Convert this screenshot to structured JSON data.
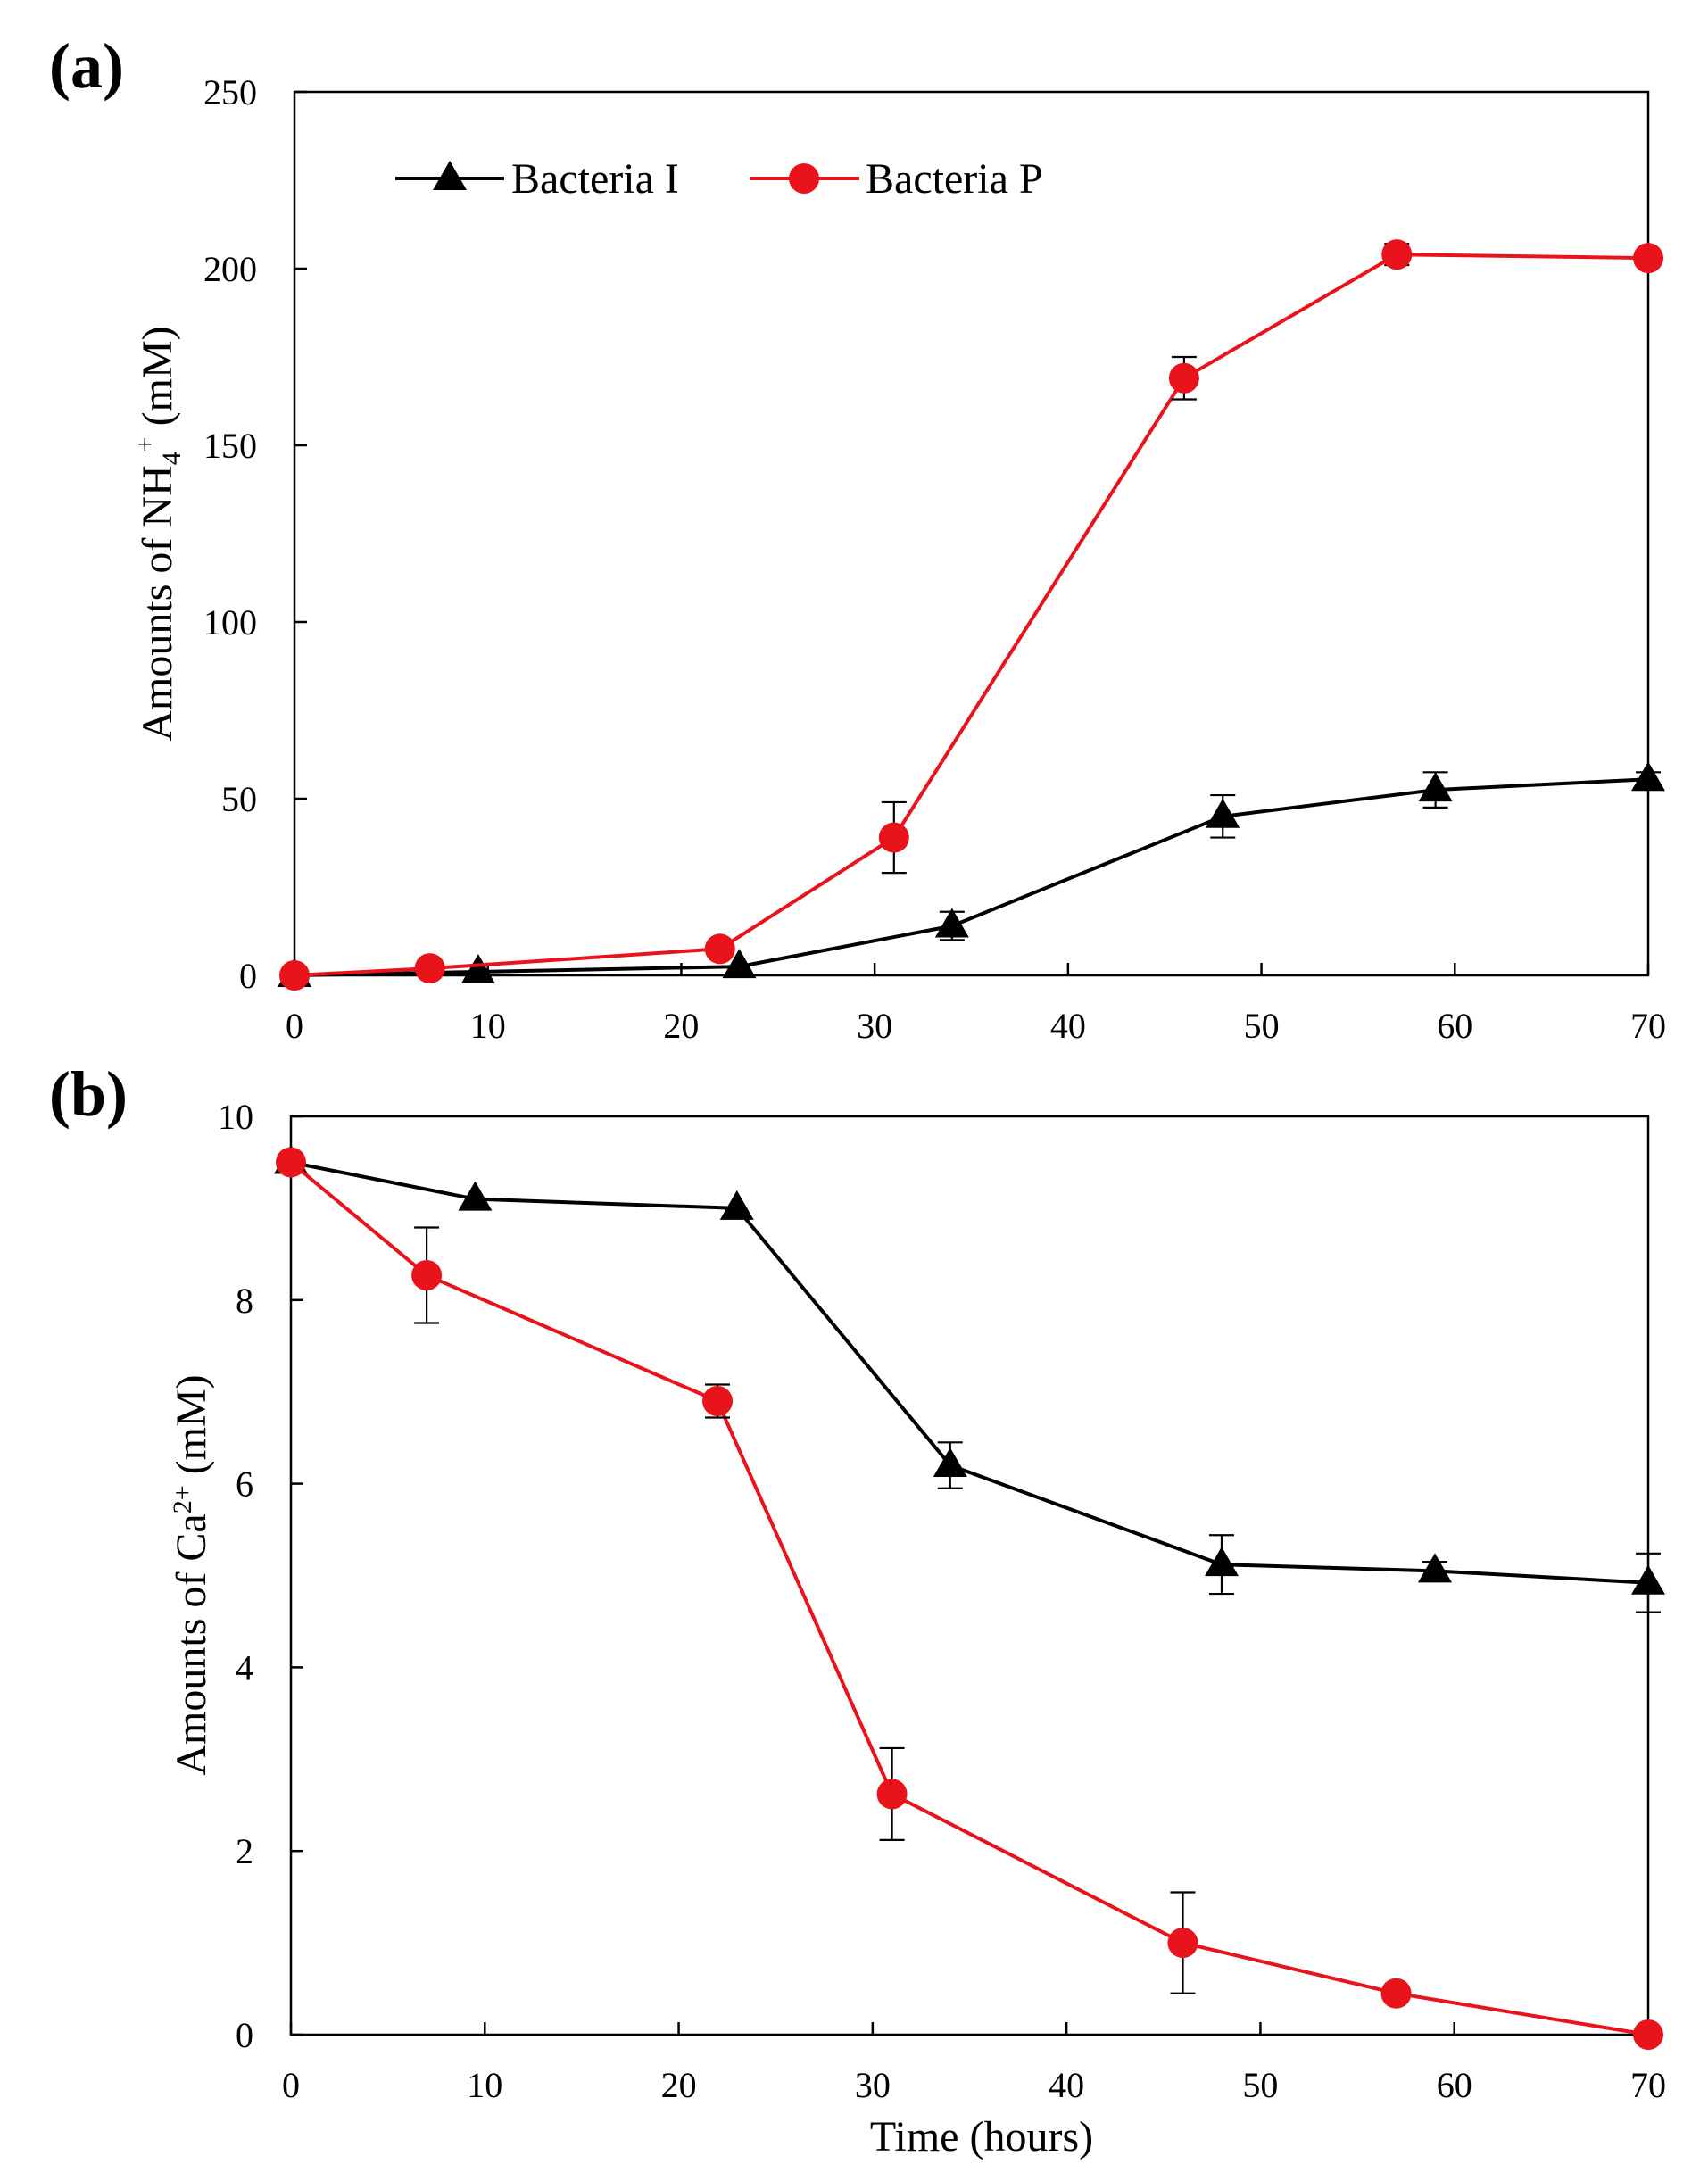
{
  "chart_data": [
    {
      "panel_label": "(a)",
      "type": "line",
      "title": "",
      "xlabel": "",
      "ylabel": {
        "prefix": "Amounts of NH",
        "sub": "4",
        "sup": "+",
        "suffix": " (mM)"
      },
      "xlim": [
        0,
        70
      ],
      "ylim": [
        0,
        250
      ],
      "xticks": [
        0,
        10,
        20,
        30,
        40,
        50,
        60,
        70
      ],
      "yticks": [
        0,
        50,
        100,
        150,
        200,
        250
      ],
      "grid": false,
      "legend_position": "top-left",
      "series": [
        {
          "name": "Bacteria I",
          "color": "#000000",
          "marker": "triangle",
          "x": [
            0,
            9.5,
            23,
            34,
            48,
            59,
            70
          ],
          "y": [
            0,
            1,
            2.5,
            14,
            45,
            52.5,
            55.5
          ],
          "err": [
            0,
            0,
            0,
            4,
            6,
            5,
            2
          ]
        },
        {
          "name": "Bacteria P",
          "color": "#e8131b",
          "marker": "circle",
          "x": [
            0,
            7,
            22,
            31,
            46,
            57,
            70
          ],
          "y": [
            0,
            2,
            7.5,
            39,
            169,
            204,
            203
          ],
          "err": [
            0,
            0,
            0,
            10,
            6,
            3,
            0
          ]
        }
      ]
    },
    {
      "panel_label": "(b)",
      "type": "line",
      "title": "",
      "xlabel": "Time (hours)",
      "ylabel": {
        "prefix": "Amounts of Ca",
        "sub": "",
        "sup": "2+",
        "suffix": " (mM)"
      },
      "xlim": [
        0,
        70
      ],
      "ylim": [
        0,
        10
      ],
      "xticks": [
        0,
        10,
        20,
        30,
        40,
        50,
        60,
        70
      ],
      "yticks": [
        0,
        2,
        4,
        6,
        8,
        10
      ],
      "grid": false,
      "series": [
        {
          "name": "Bacteria I",
          "color": "#000000",
          "marker": "triangle",
          "x": [
            0,
            9.5,
            23,
            34,
            48,
            59,
            70
          ],
          "y": [
            9.5,
            9.1,
            9.0,
            6.2,
            5.12,
            5.05,
            4.92
          ],
          "err": [
            0,
            0,
            0,
            0.25,
            0.32,
            0.1,
            0.32
          ]
        },
        {
          "name": "Bacteria P",
          "color": "#e8131b",
          "marker": "circle",
          "x": [
            0,
            7,
            22,
            31,
            46,
            57,
            70
          ],
          "y": [
            9.5,
            8.27,
            6.9,
            2.62,
            1.0,
            0.45,
            0.0
          ],
          "err": [
            0,
            0.52,
            0.18,
            0.5,
            0.55,
            0,
            0
          ]
        }
      ]
    }
  ]
}
